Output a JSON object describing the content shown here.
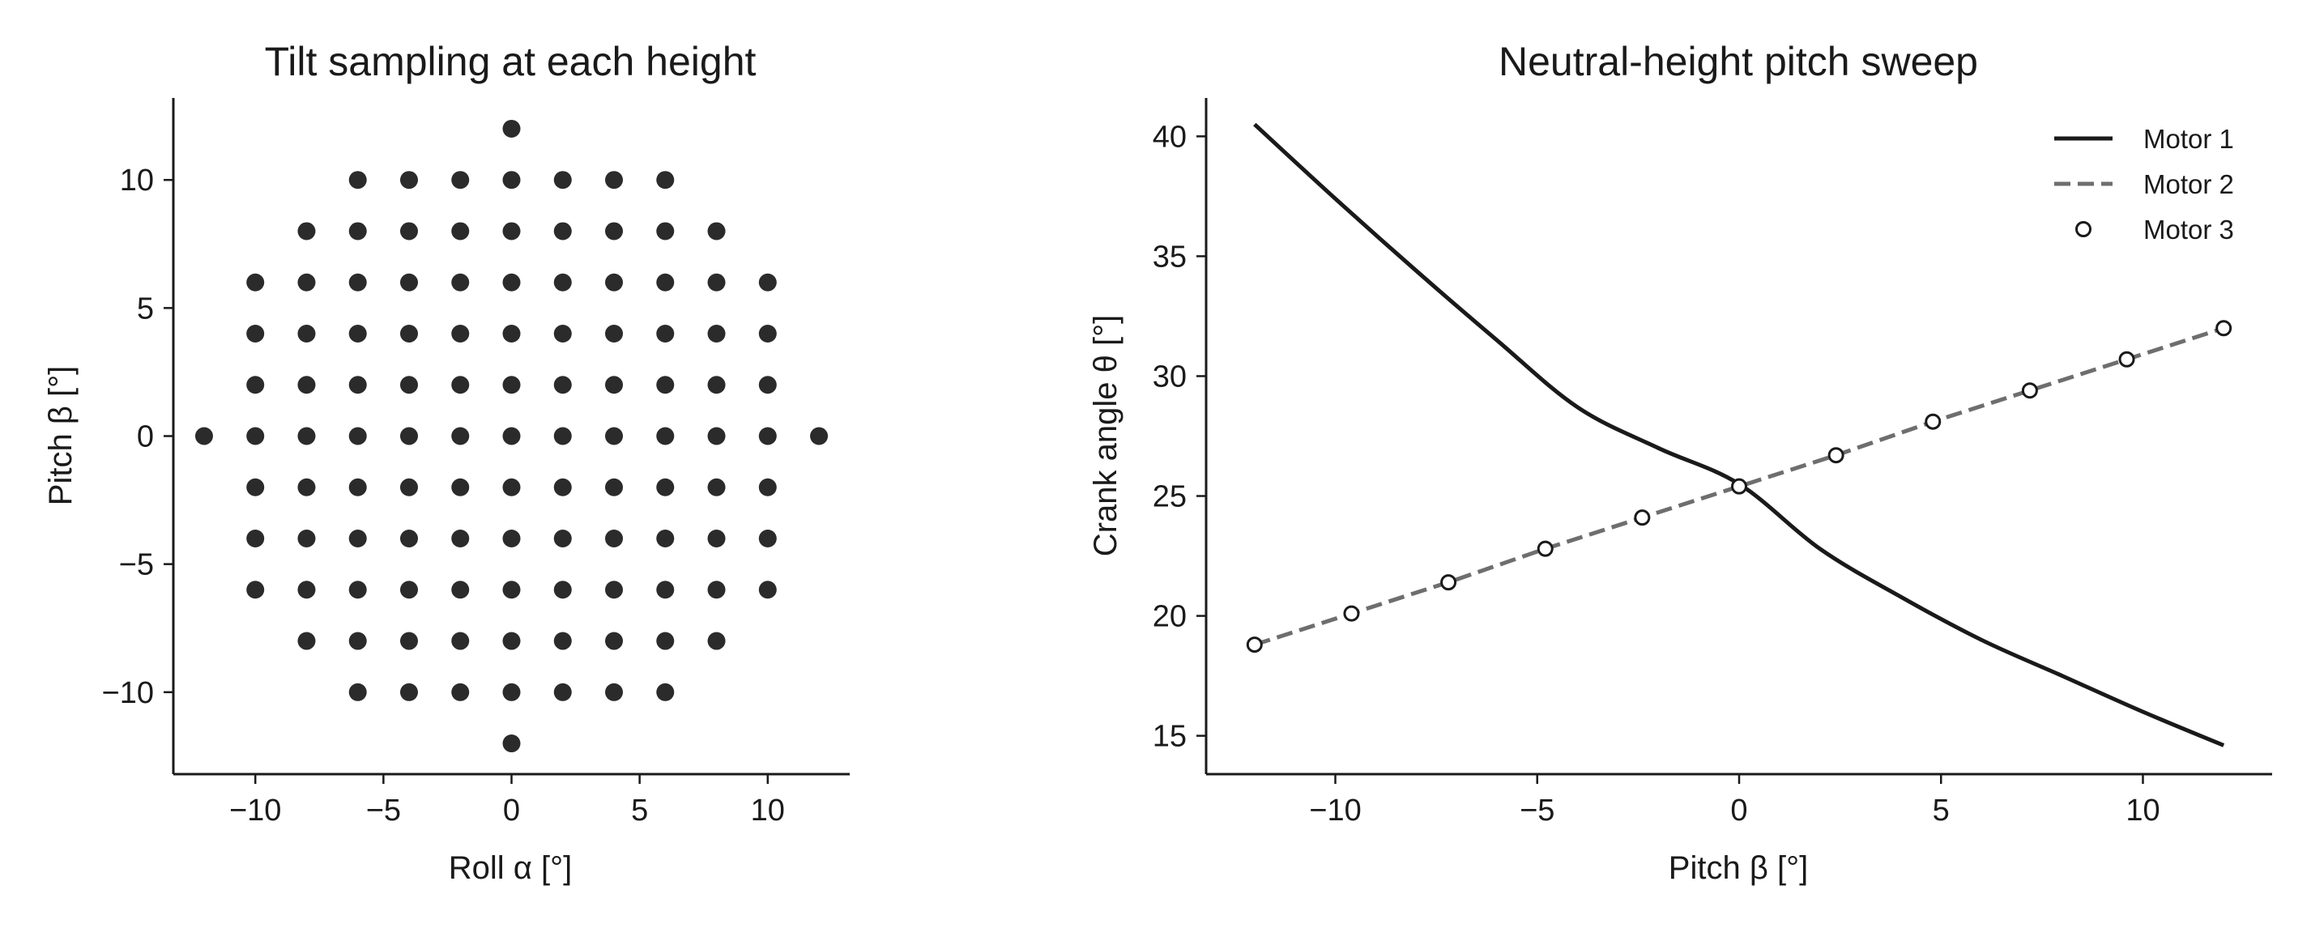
{
  "chart_data": [
    {
      "type": "scatter",
      "title": "Tilt sampling at each height",
      "xlabel": "Roll α [°]",
      "ylabel": "Pitch β [°]",
      "xlim": [
        -13.2,
        13.2
      ],
      "ylim": [
        -13.2,
        13.2
      ],
      "xticks": [
        -10,
        -5,
        0,
        5,
        10
      ],
      "yticks": [
        -10,
        -5,
        0,
        5,
        10
      ],
      "xticklabels": [
        "−10",
        "−5",
        "0",
        "5",
        "10"
      ],
      "yticklabels": [
        "−10",
        "−5",
        "0",
        "5",
        "10"
      ],
      "grid": false,
      "marker_color": "#2b2b2b",
      "points": [
        [
          0,
          12
        ],
        [
          -6,
          10
        ],
        [
          -4,
          10
        ],
        [
          -2,
          10
        ],
        [
          0,
          10
        ],
        [
          2,
          10
        ],
        [
          4,
          10
        ],
        [
          6,
          10
        ],
        [
          -8,
          8
        ],
        [
          -6,
          8
        ],
        [
          -4,
          8
        ],
        [
          -2,
          8
        ],
        [
          0,
          8
        ],
        [
          2,
          8
        ],
        [
          4,
          8
        ],
        [
          6,
          8
        ],
        [
          8,
          8
        ],
        [
          -10,
          6
        ],
        [
          -8,
          6
        ],
        [
          -6,
          6
        ],
        [
          -4,
          6
        ],
        [
          -2,
          6
        ],
        [
          0,
          6
        ],
        [
          2,
          6
        ],
        [
          4,
          6
        ],
        [
          6,
          6
        ],
        [
          8,
          6
        ],
        [
          10,
          6
        ],
        [
          -10,
          4
        ],
        [
          -8,
          4
        ],
        [
          -6,
          4
        ],
        [
          -4,
          4
        ],
        [
          -2,
          4
        ],
        [
          0,
          4
        ],
        [
          2,
          4
        ],
        [
          4,
          4
        ],
        [
          6,
          4
        ],
        [
          8,
          4
        ],
        [
          10,
          4
        ],
        [
          -10,
          2
        ],
        [
          -8,
          2
        ],
        [
          -6,
          2
        ],
        [
          -4,
          2
        ],
        [
          -2,
          2
        ],
        [
          0,
          2
        ],
        [
          2,
          2
        ],
        [
          4,
          2
        ],
        [
          6,
          2
        ],
        [
          8,
          2
        ],
        [
          10,
          2
        ],
        [
          -12,
          0
        ],
        [
          -10,
          0
        ],
        [
          -8,
          0
        ],
        [
          -6,
          0
        ],
        [
          -4,
          0
        ],
        [
          -2,
          0
        ],
        [
          0,
          0
        ],
        [
          2,
          0
        ],
        [
          4,
          0
        ],
        [
          6,
          0
        ],
        [
          8,
          0
        ],
        [
          10,
          0
        ],
        [
          12,
          0
        ],
        [
          -10,
          -2
        ],
        [
          -8,
          -2
        ],
        [
          -6,
          -2
        ],
        [
          -4,
          -2
        ],
        [
          -2,
          -2
        ],
        [
          0,
          -2
        ],
        [
          2,
          -2
        ],
        [
          4,
          -2
        ],
        [
          6,
          -2
        ],
        [
          8,
          -2
        ],
        [
          10,
          -2
        ],
        [
          -10,
          -4
        ],
        [
          -8,
          -4
        ],
        [
          -6,
          -4
        ],
        [
          -4,
          -4
        ],
        [
          -2,
          -4
        ],
        [
          0,
          -4
        ],
        [
          2,
          -4
        ],
        [
          4,
          -4
        ],
        [
          6,
          -4
        ],
        [
          8,
          -4
        ],
        [
          10,
          -4
        ],
        [
          -10,
          -6
        ],
        [
          -8,
          -6
        ],
        [
          -6,
          -6
        ],
        [
          -4,
          -6
        ],
        [
          -2,
          -6
        ],
        [
          0,
          -6
        ],
        [
          2,
          -6
        ],
        [
          4,
          -6
        ],
        [
          6,
          -6
        ],
        [
          8,
          -6
        ],
        [
          10,
          -6
        ],
        [
          -8,
          -8
        ],
        [
          -6,
          -8
        ],
        [
          -4,
          -8
        ],
        [
          -2,
          -8
        ],
        [
          0,
          -8
        ],
        [
          2,
          -8
        ],
        [
          4,
          -8
        ],
        [
          6,
          -8
        ],
        [
          8,
          -8
        ],
        [
          -6,
          -10
        ],
        [
          -4,
          -10
        ],
        [
          -2,
          -10
        ],
        [
          0,
          -10
        ],
        [
          2,
          -10
        ],
        [
          4,
          -10
        ],
        [
          6,
          -10
        ],
        [
          0,
          -12
        ]
      ]
    },
    {
      "type": "line",
      "title": "Neutral-height pitch sweep",
      "xlabel": "Pitch β [°]",
      "ylabel": "Crank angle θ [°]",
      "xlim": [
        -13.2,
        13.2
      ],
      "ylim": [
        13.4,
        41.6
      ],
      "xticks": [
        -10,
        -5,
        0,
        5,
        10
      ],
      "yticks": [
        15,
        20,
        25,
        30,
        35,
        40
      ],
      "xticklabels": [
        "−10",
        "−5",
        "0",
        "5",
        "10"
      ],
      "yticklabels": [
        "15",
        "20",
        "25",
        "30",
        "35",
        "40"
      ],
      "grid": false,
      "legend_position": "top-right",
      "series": [
        {
          "name": "Motor 1",
          "style": "solid",
          "color": "#1a1a1a",
          "x": [
            -12,
            -10,
            -8,
            -6,
            -4,
            -2,
            0,
            2,
            4,
            6,
            8,
            10,
            12
          ],
          "y": [
            40.5,
            37.4,
            34.4,
            31.5,
            28.7,
            27.0,
            25.5,
            22.8,
            20.8,
            19.0,
            17.5,
            16.0,
            14.6
          ]
        },
        {
          "name": "Motor 2",
          "style": "dashed",
          "color": "#6e6e6e",
          "x": [
            -12,
            -9.6,
            -7.2,
            -4.8,
            -2.4,
            0,
            2.4,
            4.8,
            7.2,
            9.6,
            12
          ],
          "y": [
            18.8,
            20.1,
            21.4,
            22.8,
            24.1,
            25.4,
            26.7,
            28.1,
            29.4,
            30.7,
            32.0
          ]
        },
        {
          "name": "Motor 3",
          "style": "markers",
          "color": "#1a1a1a",
          "x": [
            -12,
            -9.6,
            -7.2,
            -4.8,
            -2.4,
            0,
            2.4,
            4.8,
            7.2,
            9.6,
            12
          ],
          "y": [
            18.8,
            20.1,
            21.4,
            22.8,
            24.1,
            25.4,
            26.7,
            28.1,
            29.4,
            30.7,
            32.0
          ]
        }
      ]
    }
  ]
}
